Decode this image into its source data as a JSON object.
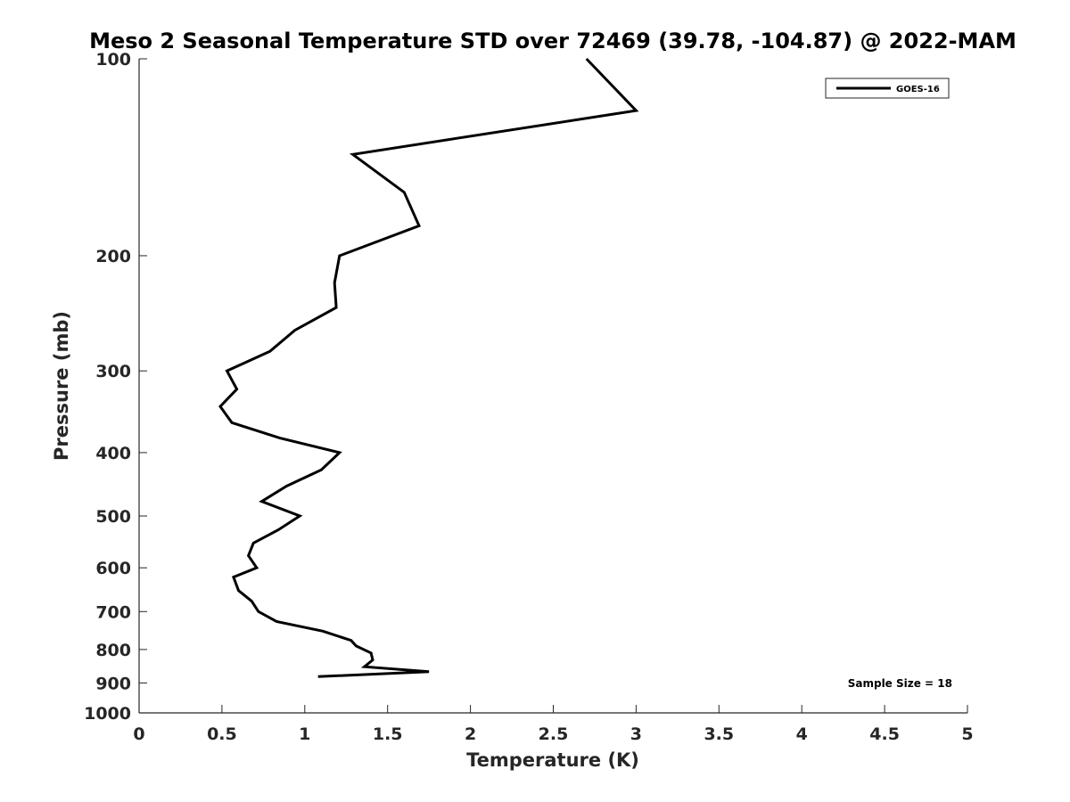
{
  "chart_data": {
    "type": "line",
    "title": "Meso 2 Seasonal Temperature STD over 72469 (39.78, -104.87) @ 2022-MAM",
    "xlabel": "Temperature (K)",
    "ylabel": "Pressure (mb)",
    "xlim": [
      0,
      5
    ],
    "ylim": [
      100,
      1000
    ],
    "yscale": "log",
    "y_reversed": true,
    "xticks": [
      0,
      0.5,
      1,
      1.5,
      2,
      2.5,
      3,
      3.5,
      4,
      4.5,
      5
    ],
    "xtick_labels": [
      "0",
      "0.5",
      "1",
      "1.5",
      "2",
      "2.5",
      "3",
      "3.5",
      "4",
      "4.5",
      "5"
    ],
    "yticks": [
      100,
      200,
      300,
      400,
      500,
      600,
      700,
      800,
      900,
      1000
    ],
    "ytick_labels": [
      "100",
      "200",
      "300",
      "400",
      "500",
      "600",
      "700",
      "800",
      "900",
      "1000"
    ],
    "grid": false,
    "legend_position": "top-right",
    "series": [
      {
        "name": "GOES-16",
        "color": "#000000",
        "points": [
          {
            "t": 2.7,
            "p": 100
          },
          {
            "t": 3.0,
            "p": 120
          },
          {
            "t": 1.29,
            "p": 140
          },
          {
            "t": 1.6,
            "p": 160
          },
          {
            "t": 1.69,
            "p": 180
          },
          {
            "t": 1.21,
            "p": 200
          },
          {
            "t": 1.18,
            "p": 220
          },
          {
            "t": 1.19,
            "p": 240
          },
          {
            "t": 0.94,
            "p": 260
          },
          {
            "t": 0.79,
            "p": 280
          },
          {
            "t": 0.53,
            "p": 300
          },
          {
            "t": 0.59,
            "p": 320
          },
          {
            "t": 0.49,
            "p": 340
          },
          {
            "t": 0.56,
            "p": 360
          },
          {
            "t": 0.85,
            "p": 380
          },
          {
            "t": 1.21,
            "p": 400
          },
          {
            "t": 1.1,
            "p": 425
          },
          {
            "t": 0.89,
            "p": 450
          },
          {
            "t": 0.74,
            "p": 475
          },
          {
            "t": 0.97,
            "p": 500
          },
          {
            "t": 0.84,
            "p": 525
          },
          {
            "t": 0.69,
            "p": 550
          },
          {
            "t": 0.66,
            "p": 575
          },
          {
            "t": 0.71,
            "p": 600
          },
          {
            "t": 0.57,
            "p": 620
          },
          {
            "t": 0.6,
            "p": 650
          },
          {
            "t": 0.68,
            "p": 675
          },
          {
            "t": 0.72,
            "p": 700
          },
          {
            "t": 0.83,
            "p": 725
          },
          {
            "t": 1.11,
            "p": 750
          },
          {
            "t": 1.28,
            "p": 775
          },
          {
            "t": 1.31,
            "p": 790
          },
          {
            "t": 1.4,
            "p": 810
          },
          {
            "t": 1.41,
            "p": 830
          },
          {
            "t": 1.36,
            "p": 850
          },
          {
            "t": 1.75,
            "p": 865
          },
          {
            "t": 1.08,
            "p": 880
          }
        ]
      }
    ],
    "annotations": [
      "Sample Size = 18"
    ]
  }
}
